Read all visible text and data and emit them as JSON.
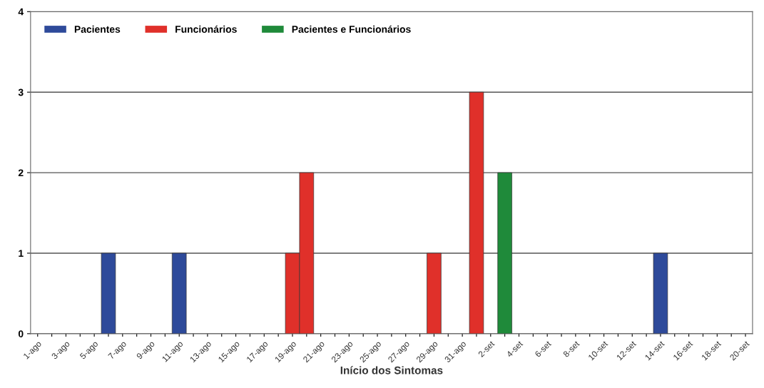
{
  "chart_data": {
    "type": "bar",
    "xlabel": "Início dos Sintomas",
    "categories": [
      "1-ago",
      null,
      "3-ago",
      null,
      "5-ago",
      null,
      "7-ago",
      null,
      "9-ago",
      null,
      "11-ago",
      null,
      "13-ago",
      null,
      "15-ago",
      null,
      "17-ago",
      null,
      "19-ago",
      null,
      "21-ago",
      null,
      "23-ago",
      null,
      "25-ago",
      null,
      "27-ago",
      null,
      "29-ago",
      null,
      "31-ago",
      null,
      "2-set",
      null,
      "4-set",
      null,
      "6-set",
      null,
      "8-set",
      null,
      "10-set",
      null,
      "12-set",
      null,
      "14-set",
      null,
      "16-set",
      null,
      "18-set",
      null,
      "20-set"
    ],
    "series": [
      {
        "name": "Pacientes",
        "color": "#2e4a9a",
        "values": [
          null,
          null,
          null,
          null,
          null,
          1,
          null,
          null,
          null,
          null,
          1,
          null,
          null,
          null,
          null,
          null,
          null,
          null,
          null,
          null,
          null,
          null,
          null,
          null,
          null,
          null,
          null,
          null,
          null,
          null,
          null,
          null,
          null,
          null,
          null,
          null,
          null,
          null,
          null,
          null,
          null,
          null,
          null,
          null,
          1,
          null,
          null,
          null,
          null,
          null,
          null
        ]
      },
      {
        "name": "Funcionários",
        "color": "#e0302a",
        "values": [
          null,
          null,
          null,
          null,
          null,
          null,
          null,
          null,
          null,
          null,
          null,
          null,
          null,
          null,
          null,
          null,
          null,
          null,
          1,
          2,
          null,
          null,
          null,
          null,
          null,
          null,
          null,
          null,
          1,
          null,
          null,
          3,
          null,
          null,
          null,
          null,
          null,
          null,
          null,
          null,
          null,
          null,
          null,
          null,
          null,
          null,
          null,
          null,
          null,
          null,
          null
        ]
      },
      {
        "name": "Pacientes e Funcionários",
        "color": "#1f8a3a",
        "values": [
          null,
          null,
          null,
          null,
          null,
          null,
          null,
          null,
          null,
          null,
          null,
          null,
          null,
          null,
          null,
          null,
          null,
          null,
          null,
          null,
          null,
          null,
          null,
          null,
          null,
          null,
          null,
          null,
          null,
          null,
          null,
          null,
          null,
          2,
          null,
          null,
          null,
          null,
          null,
          null,
          null,
          null,
          null,
          null,
          null,
          null,
          null,
          null,
          null,
          null,
          null
        ]
      }
    ],
    "ylim": [
      0,
      4
    ],
    "yticks": [
      0,
      1,
      2,
      3,
      4
    ],
    "grid": "y",
    "legend": "top left"
  }
}
